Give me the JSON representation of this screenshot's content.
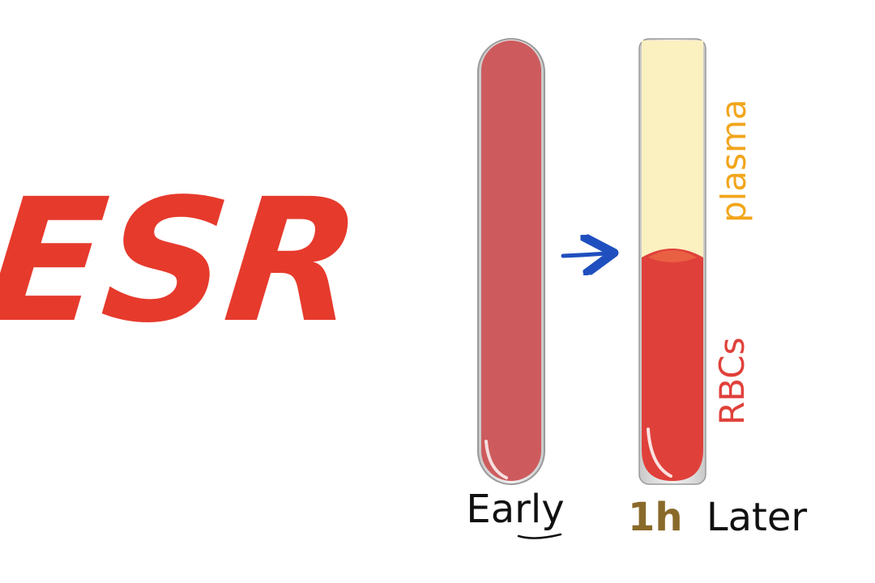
{
  "title": "ESR",
  "tubes": [
    {
      "label": "Early"
    },
    {
      "label_prefix": "1h",
      "label_suffix": "Later"
    }
  ],
  "layers": {
    "top": "plasma",
    "bottom": "RBCs"
  },
  "colors": {
    "title": "#e63a2c",
    "whole_blood": "#cd5b5d",
    "rbc": "#e0403a",
    "plasma": "#fbf0c0",
    "plasma_label": "#f2a51b",
    "rbc_label": "#e0403a",
    "arrow": "#1f4fbf",
    "time_label": "#8a6a2a",
    "text": "#111111"
  }
}
